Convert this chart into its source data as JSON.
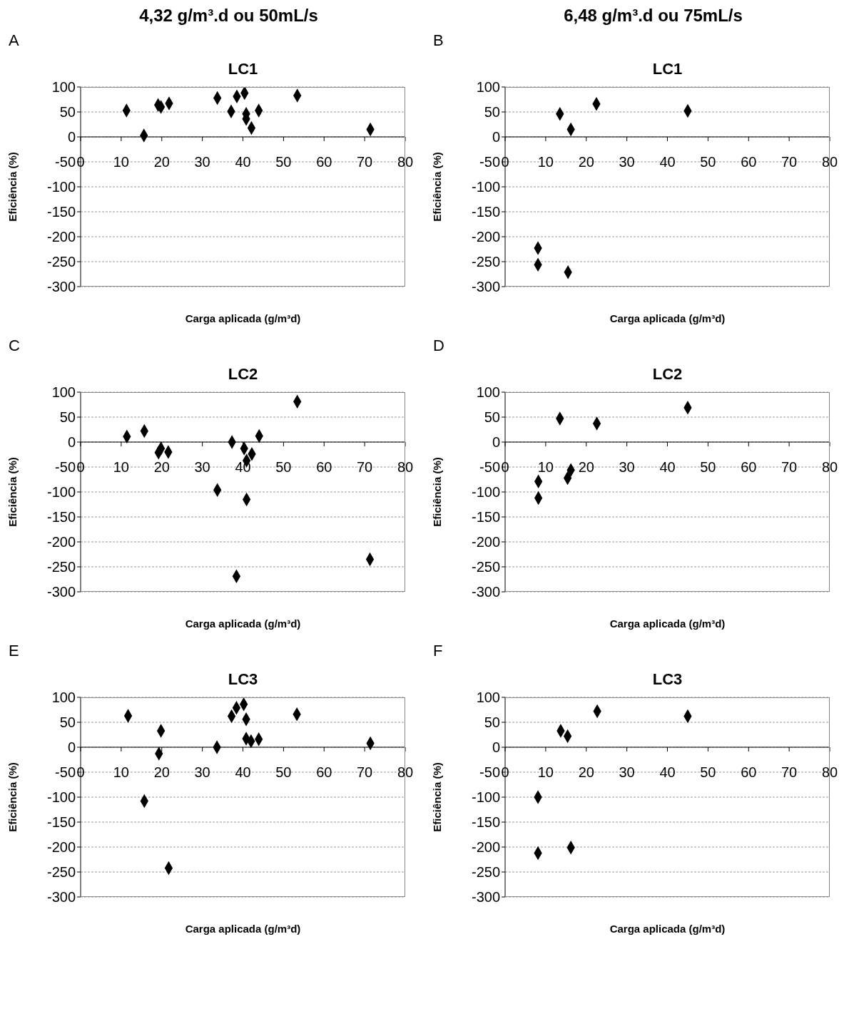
{
  "chart_data": [
    {
      "type": "scatter",
      "title": "LC1",
      "annotations": [
        "4,32 g/m³.d ou 50mL/s",
        "A"
      ],
      "xlabel": "Carga aplicada (g/m³d)",
      "ylabel": "Eficiência (%)",
      "color": "#000000",
      "marker": "diamond",
      "xlim": [
        0,
        80
      ],
      "xticks": [
        0,
        10,
        20,
        30,
        40,
        50,
        60,
        70,
        80
      ],
      "ylim": [
        -300,
        100
      ],
      "yticks": [
        -300,
        -250,
        -200,
        -150,
        -100,
        -50,
        0,
        50,
        100
      ],
      "grid": "y",
      "x": [
        11.3,
        15.6,
        19.1,
        19.8,
        21.8,
        33.7,
        37.1,
        38.5,
        40.4,
        40.8,
        40.8,
        42.1,
        43.9,
        53.4,
        71.4
      ],
      "values": [
        53,
        3,
        64,
        60,
        67,
        78,
        51,
        81,
        88,
        46,
        36,
        18,
        53,
        83,
        15
      ]
    },
    {
      "type": "scatter",
      "title": "LC1",
      "annotations": [
        "6,48 g/m³.d ou 75mL/s",
        "B"
      ],
      "xlabel": "Carga aplicada (g/m³d)",
      "ylabel": "Eficiência (%)",
      "color": "#000000",
      "marker": "diamond",
      "xlim": [
        0,
        80
      ],
      "xticks": [
        0,
        10,
        20,
        30,
        40,
        50,
        60,
        70,
        80
      ],
      "ylim": [
        -300,
        100
      ],
      "yticks": [
        -300,
        -250,
        -200,
        -150,
        -100,
        -50,
        0,
        50,
        100
      ],
      "grid": "y",
      "x": [
        13.5,
        16.2,
        22.5,
        45,
        8.1,
        8.1,
        15.5
      ],
      "values": [
        46,
        15,
        66,
        52,
        -223,
        -256,
        -271
      ]
    },
    {
      "type": "scatter",
      "title": "LC2",
      "annotations": [
        "C"
      ],
      "xlabel": "Carga aplicada (g/m³d)",
      "ylabel": "Eficiência (%)",
      "color": "#000000",
      "marker": "diamond",
      "xlim": [
        0,
        80
      ],
      "xticks": [
        0,
        10,
        20,
        30,
        40,
        50,
        60,
        70,
        80
      ],
      "ylim": [
        -300,
        100
      ],
      "yticks": [
        -300,
        -250,
        -200,
        -150,
        -100,
        -50,
        0,
        50,
        100
      ],
      "grid": "y",
      "x": [
        11.4,
        15.7,
        19.2,
        19.8,
        21.6,
        33.7,
        37.3,
        38.4,
        40.3,
        40.9,
        42.2,
        40.9,
        44,
        53.4,
        71.3
      ],
      "values": [
        11,
        22,
        -21,
        -13,
        -20,
        -96,
        0,
        -269,
        -13,
        -37,
        -24,
        -115,
        12,
        81,
        -235
      ]
    },
    {
      "type": "scatter",
      "title": "LC2",
      "annotations": [
        "D"
      ],
      "xlabel": "Carga aplicada (g/m³d)",
      "ylabel": "Eficiência (%)",
      "color": "#000000",
      "marker": "diamond",
      "xlim": [
        0,
        80
      ],
      "xticks": [
        0,
        10,
        20,
        30,
        40,
        50,
        60,
        70,
        80
      ],
      "ylim": [
        -300,
        100
      ],
      "yticks": [
        -300,
        -250,
        -200,
        -150,
        -100,
        -50,
        0,
        50,
        100
      ],
      "grid": "y",
      "x": [
        13.5,
        22.6,
        45,
        8.2,
        8.2,
        15.4,
        16.2
      ],
      "values": [
        47,
        37,
        69,
        -79,
        -112,
        -72,
        -56
      ]
    },
    {
      "type": "scatter",
      "title": "LC3",
      "annotations": [
        "E"
      ],
      "xlabel": "Carga aplicada (g/m³d)",
      "ylabel": "Eficiência (%)",
      "color": "#000000",
      "marker": "diamond",
      "xlim": [
        0,
        80
      ],
      "xticks": [
        0,
        10,
        20,
        30,
        40,
        50,
        60,
        70,
        80
      ],
      "ylim": [
        -300,
        100
      ],
      "yticks": [
        -300,
        -250,
        -200,
        -150,
        -100,
        -50,
        0,
        50,
        100
      ],
      "grid": "y",
      "x": [
        11.7,
        19.8,
        19.3,
        15.7,
        21.7,
        33.6,
        37.2,
        38.4,
        40.2,
        40.8,
        40.8,
        42,
        43.9,
        53.3,
        71.4
      ],
      "values": [
        63,
        33,
        -13,
        -108,
        -242,
        0,
        62,
        79,
        86,
        56,
        17,
        12,
        16,
        66,
        8
      ]
    },
    {
      "type": "scatter",
      "title": "LC3",
      "annotations": [
        "F"
      ],
      "xlabel": "Carga aplicada (g/m³d)",
      "ylabel": "Eficiência (%)",
      "color": "#000000",
      "marker": "diamond",
      "xlim": [
        0,
        80
      ],
      "xticks": [
        0,
        10,
        20,
        30,
        40,
        50,
        60,
        70,
        80
      ],
      "ylim": [
        -300,
        100
      ],
      "yticks": [
        -300,
        -250,
        -200,
        -150,
        -100,
        -50,
        0,
        50,
        100
      ],
      "grid": "y",
      "x": [
        13.7,
        15.4,
        22.7,
        45,
        8.1,
        8.1,
        16.2
      ],
      "values": [
        33,
        22,
        72,
        62,
        -100,
        -212,
        -201
      ]
    }
  ]
}
